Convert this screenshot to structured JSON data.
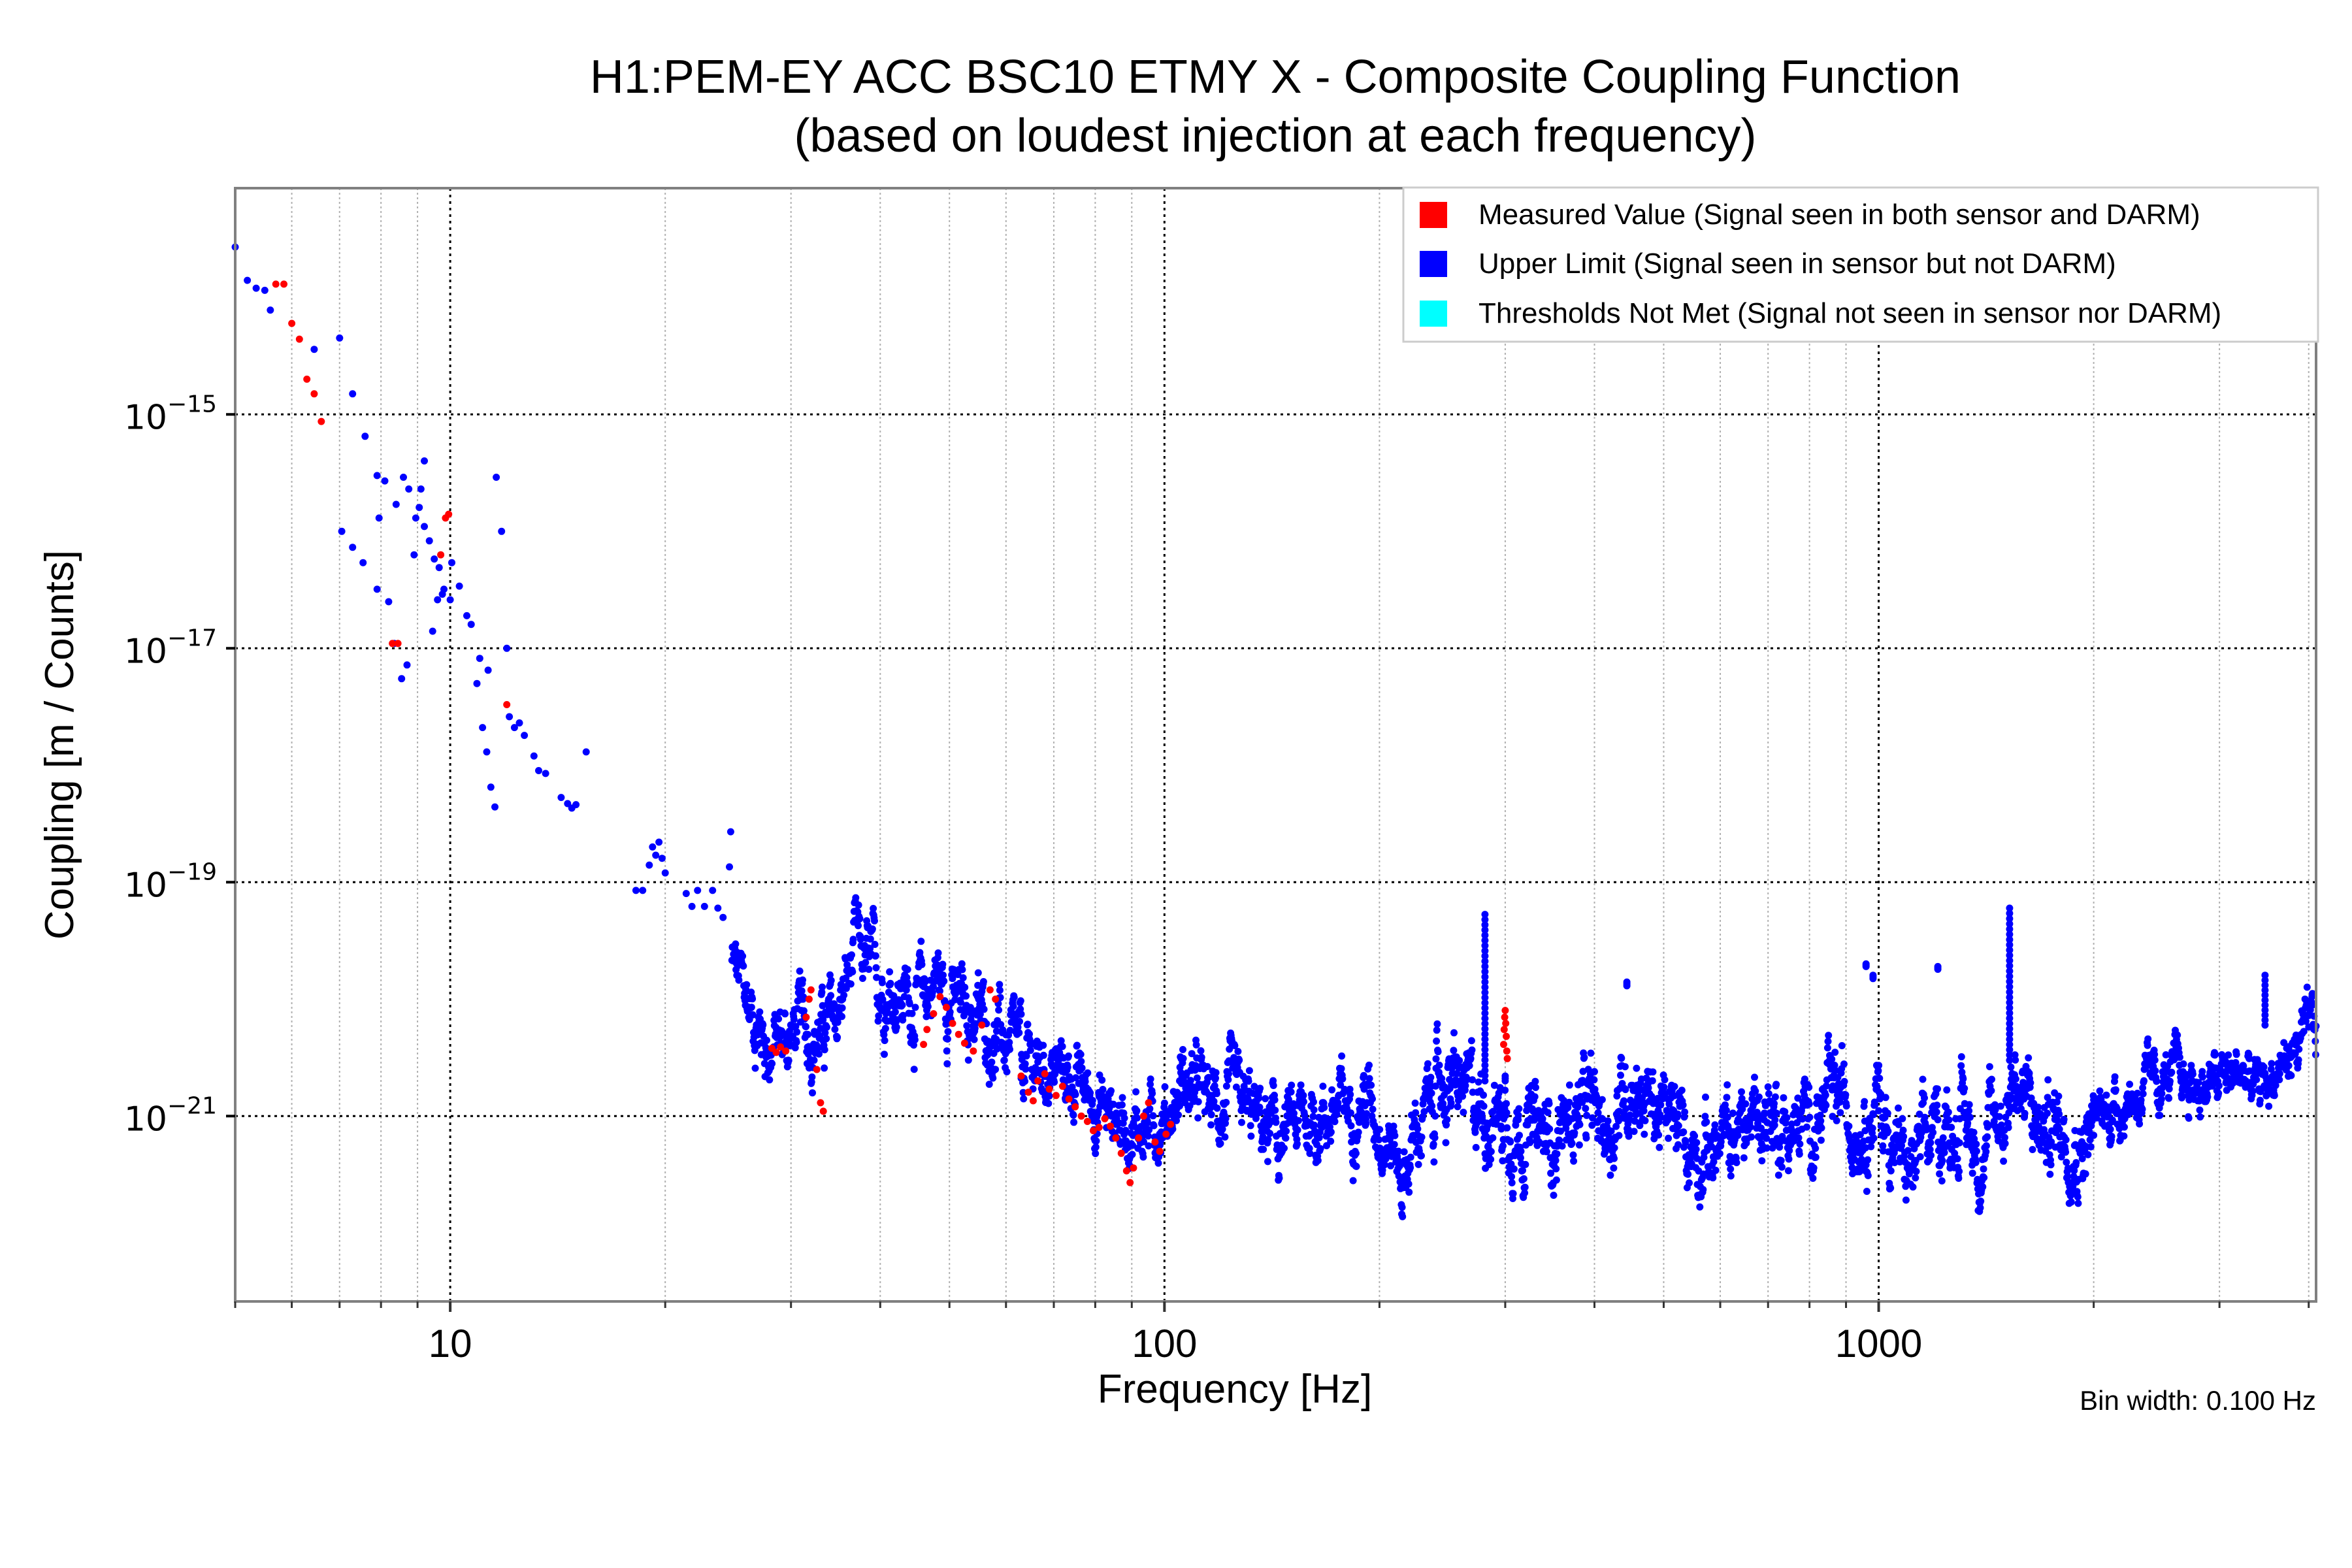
{
  "chart_data": {
    "type": "scatter",
    "title": "H1:PEM-EY ACC BSC10 ETMY X - Composite Coupling Function",
    "subtitle": "(based on loudest injection at each frequency)",
    "xlabel": "Frequency [Hz]",
    "ylabel": "Coupling [m / Counts]",
    "xscale": "log",
    "yscale": "log",
    "xlim": [
      5,
      4096
    ],
    "ylim": [
      2.6e-23,
      8.6e-14
    ],
    "grid": true,
    "x_ticks": [
      {
        "value": 10,
        "label": "10"
      },
      {
        "value": 100,
        "label": "100"
      },
      {
        "value": 1000,
        "label": "1000"
      }
    ],
    "y_ticks": [
      {
        "value": 1e-15,
        "base": "10",
        "exp": "−15"
      },
      {
        "value": 1e-17,
        "base": "10",
        "exp": "−17"
      },
      {
        "value": 1e-19,
        "base": "10",
        "exp": "−19"
      },
      {
        "value": 1e-21,
        "base": "10",
        "exp": "−21"
      }
    ],
    "annotation": "Bin width: 0.100 Hz",
    "legend_position": "top-right",
    "series": [
      {
        "name": "Measured Value (Signal seen in both sensor and DARM)",
        "color": "#ff0000",
        "points": [
          [
            5.7,
            1.3e-14
          ],
          [
            5.85,
            1.3e-14
          ],
          [
            6.0,
            6e-15
          ],
          [
            6.15,
            4.4e-15
          ],
          [
            6.3,
            2e-15
          ],
          [
            6.45,
            1.5e-15
          ],
          [
            6.6,
            8.7e-16
          ],
          [
            8.3,
            1.1e-17
          ],
          [
            8.45,
            1.1e-17
          ],
          [
            9.7,
            6.3e-17
          ],
          [
            9.85,
            1.3e-16
          ],
          [
            9.95,
            1.4e-16
          ],
          [
            12.0,
            3.3e-18
          ],
          [
            28.2,
            3.8e-21
          ],
          [
            28.6,
            3.5e-21
          ],
          [
            29.0,
            3.9e-21
          ],
          [
            29.5,
            3.6e-21
          ],
          [
            31.5,
            7e-21
          ],
          [
            31.8,
            1e-20
          ],
          [
            32.0,
            1.2e-20
          ],
          [
            32.6,
            2.5e-21
          ],
          [
            33.0,
            1.3e-21
          ],
          [
            33.3,
            1.1e-21
          ],
          [
            46.0,
            4.1e-21
          ],
          [
            46.5,
            5.5e-21
          ],
          [
            47.5,
            7.5e-21
          ],
          [
            48.5,
            1.05e-20
          ],
          [
            49.5,
            8.5e-21
          ],
          [
            50.5,
            6.2e-21
          ],
          [
            51.5,
            5e-21
          ],
          [
            52.5,
            4.2e-21
          ],
          [
            54.0,
            3.6e-21
          ],
          [
            55.5,
            6e-21
          ],
          [
            57.0,
            1.2e-20
          ],
          [
            58.0,
            1e-20
          ],
          [
            63.0,
            2.2e-21
          ],
          [
            64.5,
            1.6e-21
          ],
          [
            65.5,
            1.35e-21
          ],
          [
            66.5,
            2e-21
          ],
          [
            68.0,
            2.3e-21
          ],
          [
            69.0,
            1.7e-21
          ],
          [
            70.5,
            1.5e-21
          ],
          [
            72.0,
            1.8e-21
          ],
          [
            73.5,
            1.4e-21
          ],
          [
            75.0,
            1.2e-21
          ],
          [
            76.5,
            1e-21
          ],
          [
            78.0,
            9e-22
          ],
          [
            79.5,
            7.5e-22
          ],
          [
            81.0,
            8e-22
          ],
          [
            82.5,
            9.5e-22
          ],
          [
            84.0,
            8.2e-22
          ],
          [
            85.5,
            6.5e-22
          ],
          [
            87.0,
            4.8e-22
          ],
          [
            88.5,
            3.4e-22
          ],
          [
            89.5,
            2.7e-22
          ],
          [
            90.5,
            3.6e-22
          ],
          [
            92.0,
            6.5e-22
          ],
          [
            93.5,
            1e-21
          ],
          [
            95.0,
            1.3e-21
          ],
          [
            97.0,
            6e-22
          ],
          [
            98.5,
            5e-22
          ],
          [
            100.5,
            7e-22
          ],
          [
            102.0,
            8.5e-22
          ],
          [
            298.5,
            4.1e-21
          ],
          [
            299.0,
            5.5e-21
          ],
          [
            299.5,
            7e-21
          ],
          [
            300.0,
            8e-21
          ],
          [
            300.5,
            6.2e-21
          ],
          [
            301.0,
            4.8e-21
          ],
          [
            301.5,
            3.6e-21
          ],
          [
            302.0,
            3.1e-21
          ]
        ]
      },
      {
        "name": "Upper Limit (Signal seen in sensor but not DARM)",
        "color": "#0000ff",
        "sparse_points": [
          [
            5.0,
            2.7e-14
          ],
          [
            5.2,
            1.4e-14
          ],
          [
            5.35,
            1.2e-14
          ],
          [
            5.5,
            1.15e-14
          ],
          [
            5.6,
            7.8e-15
          ],
          [
            6.45,
            3.6e-15
          ],
          [
            7.0,
            4.5e-15
          ],
          [
            7.3,
            1.5e-15
          ],
          [
            7.6,
            6.5e-16
          ],
          [
            7.9,
            3e-16
          ],
          [
            7.95,
            1.3e-16
          ],
          [
            8.1,
            2.7e-16
          ],
          [
            8.4,
            1.7e-16
          ],
          [
            8.6,
            2.9e-16
          ],
          [
            8.75,
            2.3e-16
          ],
          [
            8.95,
            1.3e-16
          ],
          [
            9.05,
            1.6e-16
          ],
          [
            9.2,
            1.1e-16
          ],
          [
            9.35,
            8.3e-17
          ],
          [
            9.5,
            5.8e-17
          ],
          [
            9.65,
            4.9e-17
          ],
          [
            9.8,
            3.2e-17
          ],
          [
            10.0,
            2.6e-17
          ],
          [
            7.05,
            1e-16
          ],
          [
            7.3,
            7.3e-17
          ],
          [
            7.55,
            5.4e-17
          ],
          [
            7.9,
            3.2e-17
          ],
          [
            8.2,
            2.5e-17
          ],
          [
            8.35,
            1.1e-17
          ],
          [
            8.55,
            5.5e-18
          ],
          [
            8.7,
            7.2e-18
          ],
          [
            8.9,
            6.3e-17
          ],
          [
            9.1,
            2.3e-16
          ],
          [
            9.2,
            4e-16
          ],
          [
            9.45,
            1.4e-17
          ],
          [
            9.6,
            2.6e-17
          ],
          [
            9.75,
            2.9e-17
          ],
          [
            10.05,
            5.4e-17
          ],
          [
            10.3,
            3.4e-17
          ],
          [
            10.55,
            1.9e-17
          ],
          [
            10.7,
            1.6e-17
          ],
          [
            11.0,
            8.2e-18
          ],
          [
            11.3,
            6.5e-18
          ],
          [
            11.6,
            2.9e-16
          ],
          [
            11.8,
            1e-16
          ],
          [
            12.0,
            1e-17
          ],
          [
            10.9,
            5e-18
          ],
          [
            11.1,
            2.1e-18
          ],
          [
            11.25,
            1.3e-18
          ],
          [
            11.4,
            6.5e-19
          ],
          [
            11.55,
            4.4e-19
          ],
          [
            12.1,
            2.6e-18
          ],
          [
            12.3,
            2.1e-18
          ],
          [
            12.5,
            2.3e-18
          ],
          [
            12.7,
            1.8e-18
          ],
          [
            13.1,
            1.2e-18
          ],
          [
            13.3,
            9e-19
          ],
          [
            13.6,
            8.5e-19
          ],
          [
            14.3,
            5.3e-19
          ],
          [
            14.6,
            4.7e-19
          ],
          [
            14.8,
            4.3e-19
          ],
          [
            15.0,
            4.6e-19
          ],
          [
            15.5,
            1.3e-18
          ],
          [
            18.2,
            8.5e-20
          ],
          [
            18.6,
            8.5e-20
          ],
          [
            19.0,
            1.4e-19
          ],
          [
            19.2,
            2e-19
          ],
          [
            19.4,
            1.7e-19
          ],
          [
            19.6,
            2.2e-19
          ],
          [
            19.8,
            1.6e-19
          ],
          [
            20.0,
            1.2e-19
          ],
          [
            21.4,
            8e-20
          ],
          [
            21.8,
            6.2e-20
          ],
          [
            22.2,
            8.5e-20
          ],
          [
            22.7,
            6.2e-20
          ],
          [
            23.3,
            8.5e-20
          ],
          [
            23.7,
            6e-20
          ],
          [
            24.1,
            5e-20
          ],
          [
            24.6,
            1.35e-19
          ],
          [
            24.7,
            2.7e-19
          ]
        ],
        "dense_segments": [
          {
            "from": 24.8,
            "to": 63.0,
            "base": [
              [
                24.8,
                2e-20
              ],
              [
                26.0,
                1e-20
              ],
              [
                27.0,
                6e-21
              ],
              [
                28.0,
                4e-21
              ],
              [
                29.5,
                4.5e-21
              ],
              [
                31.0,
                6e-21
              ],
              [
                33.5,
                5e-21
              ],
              [
                35.0,
                8e-21
              ],
              [
                37.0,
                2.5e-20
              ],
              [
                39.0,
                1.6e-20
              ],
              [
                42.0,
                1.2e-20
              ],
              [
                45.0,
                9e-21
              ],
              [
                48.0,
                1.6e-20
              ],
              [
                51.0,
                9e-21
              ],
              [
                55.0,
                7e-21
              ],
              [
                60.0,
                4e-21
              ],
              [
                63.0,
                3e-21
              ]
            ],
            "spread": 0.35
          },
          {
            "from": 63.0,
            "to": 105.0,
            "base": [
              [
                63.0,
                3e-21
              ],
              [
                68.0,
                2.6e-21
              ],
              [
                72.0,
                2.4e-21
              ],
              [
                78.0,
                1.6e-21
              ],
              [
                85.0,
                1e-21
              ],
              [
                92.0,
                8e-22
              ],
              [
                96.0,
                9e-22
              ],
              [
                100.0,
                1e-21
              ],
              [
                105.0,
                1.4e-21
              ]
            ],
            "spread": 0.3
          },
          {
            "from": 105.0,
            "to": 240.0,
            "base": [
              [
                105.0,
                2e-21
              ],
              [
                115.0,
                1.3e-21
              ],
              [
                125.0,
                1.2e-21
              ],
              [
                135.0,
                9e-22
              ],
              [
                145.0,
                6e-22
              ],
              [
                160.0,
                1e-21
              ],
              [
                175.0,
                1.1e-21
              ],
              [
                190.0,
                1.5e-21
              ],
              [
                205.0,
                8e-22
              ],
              [
                215.0,
                3e-22
              ],
              [
                225.0,
                7e-22
              ],
              [
                240.0,
                1.5e-21
              ]
            ],
            "spread": 0.35
          },
          {
            "from": 240.0,
            "to": 1000.0,
            "base": [
              [
                240.0,
                2.2e-21
              ],
              [
                260.0,
                1.5e-21
              ],
              [
                285.0,
                1.2e-21
              ],
              [
                310.0,
                9e-22
              ],
              [
                340.0,
                6e-22
              ],
              [
                380.0,
                1.1e-21
              ],
              [
                420.0,
                8e-22
              ],
              [
                450.0,
                2.2e-21
              ],
              [
                480.0,
                1.3e-21
              ],
              [
                520.0,
                7e-22
              ],
              [
                560.0,
                6e-22
              ],
              [
                600.0,
                5e-22
              ],
              [
                650.0,
                8e-22
              ],
              [
                700.0,
                1.2e-21
              ],
              [
                760.0,
                7e-22
              ],
              [
                820.0,
                1e-21
              ],
              [
                880.0,
                1.4e-21
              ],
              [
                940.0,
                1e-21
              ],
              [
                1000.0,
                1.5e-21
              ]
            ],
            "spread": 0.4
          },
          {
            "from": 1000.0,
            "to": 2000.0,
            "base": [
              [
                1000.0,
                1.3e-21
              ],
              [
                1050.0,
                6e-22
              ],
              [
                1100.0,
                3e-22
              ],
              [
                1150.0,
                4.5e-22
              ],
              [
                1200.0,
                7e-22
              ],
              [
                1300.0,
                1e-21
              ],
              [
                1400.0,
                5e-22
              ],
              [
                1500.0,
                1.2e-21
              ],
              [
                1550.0,
                2.5e-21
              ],
              [
                1600.0,
                1.3e-21
              ],
              [
                1700.0,
                7e-22
              ],
              [
                1800.0,
                1e-21
              ],
              [
                1900.0,
                6e-22
              ],
              [
                2000.0,
                8e-22
              ]
            ],
            "spread": 0.4
          },
          {
            "from": 2000.0,
            "to": 4096.0,
            "base": [
              [
                2000.0,
                1e-21
              ],
              [
                2200.0,
                1.3e-21
              ],
              [
                2400.0,
                1.8e-21
              ],
              [
                2600.0,
                2.2e-21
              ],
              [
                2800.0,
                1.8e-21
              ],
              [
                3000.0,
                2e-21
              ],
              [
                3200.0,
                2.4e-21
              ],
              [
                3400.0,
                1.6e-21
              ],
              [
                3600.0,
                2.4e-21
              ],
              [
                3800.0,
                3.5e-21
              ],
              [
                4096.0,
                5.5e-21
              ]
            ],
            "spread": 0.25
          }
        ],
        "spikes": [
          [
            281.0,
            2e-21,
            5.3e-20
          ],
          [
            444.0,
            1.3e-20,
            1.4e-20
          ],
          [
            960.0,
            1.9e-20,
            2e-20
          ],
          [
            982.0,
            1.5e-20,
            1.6e-20
          ],
          [
            1210.0,
            1.8e-20,
            1.9e-20
          ],
          [
            1525.0,
            3e-21,
            6e-20
          ],
          [
            3475.0,
            6e-21,
            1.6e-20
          ],
          [
            300.0,
            2e-21,
            2.2e-21
          ]
        ]
      },
      {
        "name": "Thresholds Not Met (Signal not seen in sensor nor DARM)",
        "color": "#00ffff",
        "points": []
      }
    ]
  }
}
